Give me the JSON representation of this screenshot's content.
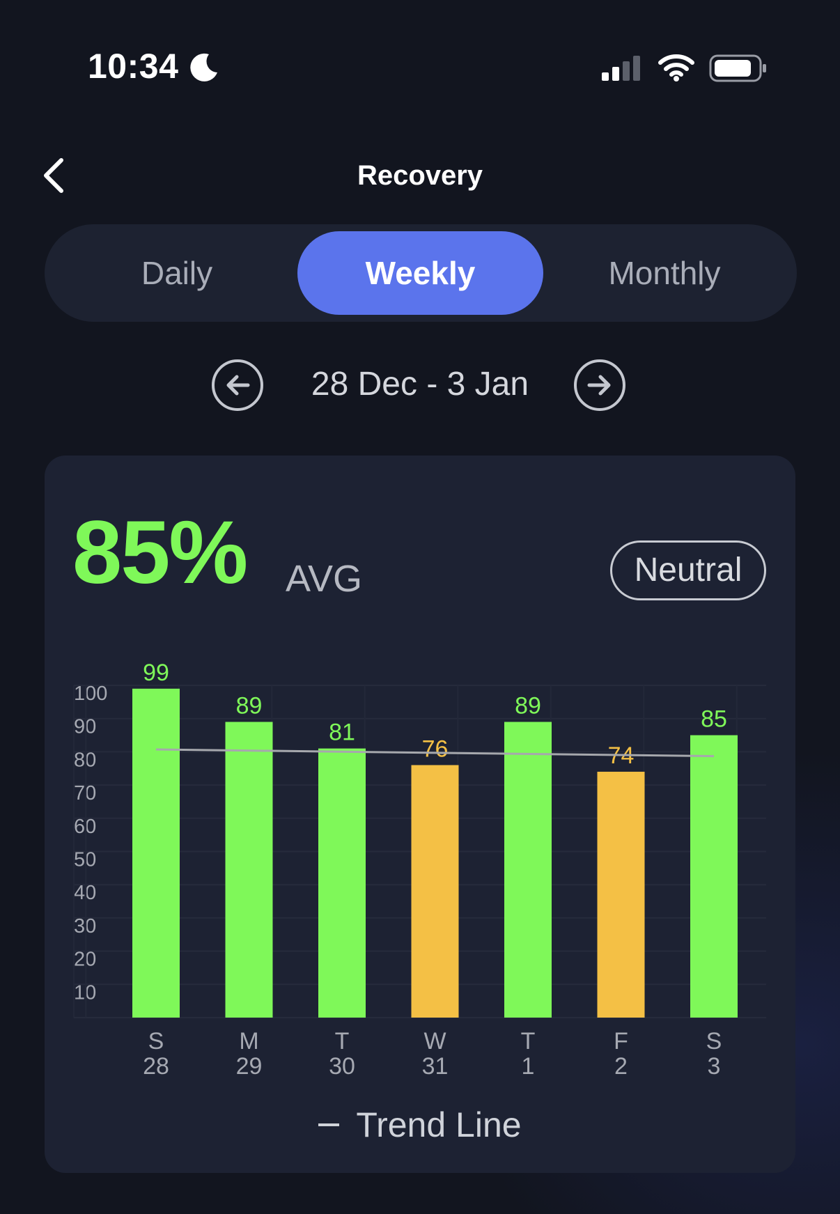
{
  "status_bar": {
    "time": "10:34",
    "icons": [
      "moon-icon",
      "signal-icon",
      "wifi-icon",
      "battery-icon"
    ]
  },
  "header": {
    "title": "Recovery",
    "back_icon": "chevron-left-icon"
  },
  "tabs": [
    {
      "label": "Daily",
      "active": false
    },
    {
      "label": "Weekly",
      "active": true
    },
    {
      "label": "Monthly",
      "active": false
    }
  ],
  "date_nav": {
    "range": "28 Dec - 3 Jan",
    "prev_icon": "arrow-left-circle-icon",
    "next_icon": "arrow-right-circle-icon"
  },
  "summary": {
    "value": "85%",
    "label": "AVG",
    "status": "Neutral"
  },
  "colors": {
    "accent": "#5b74ec",
    "good": "#7ff859",
    "neutral": "#f4c045",
    "trend": "#a6a8ad",
    "card": "#1d2233"
  },
  "chart_data": {
    "type": "bar",
    "title": "",
    "xlabel": "",
    "ylabel": "",
    "ylim": [
      0,
      100
    ],
    "yticks": [
      10,
      20,
      30,
      40,
      50,
      60,
      70,
      80,
      90,
      100
    ],
    "grid": true,
    "categories": [
      {
        "day": "S",
        "date": "28"
      },
      {
        "day": "M",
        "date": "29"
      },
      {
        "day": "T",
        "date": "30"
      },
      {
        "day": "W",
        "date": "31"
      },
      {
        "day": "T",
        "date": "1"
      },
      {
        "day": "F",
        "date": "2"
      },
      {
        "day": "S",
        "date": "3"
      }
    ],
    "values": [
      99,
      89,
      81,
      76,
      89,
      74,
      85
    ],
    "bar_status": [
      "good",
      "good",
      "good",
      "neutral",
      "good",
      "neutral",
      "good"
    ],
    "trend_line": {
      "label": "Trend Line",
      "start": 80.7,
      "end": 78.7
    },
    "legend": "Trend Line"
  }
}
